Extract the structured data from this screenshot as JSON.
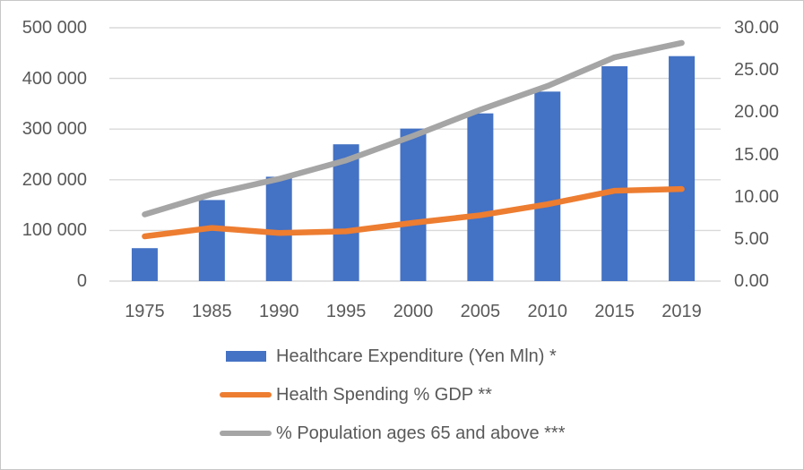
{
  "chart_data": {
    "type": "combo",
    "title": "",
    "categories": [
      "1975",
      "1985",
      "1990",
      "1995",
      "2000",
      "2005",
      "2010",
      "2015",
      "2019"
    ],
    "series": [
      {
        "name": "Healthcare Expenditure (Yen Mln) *",
        "chart_type": "bar",
        "axis": "left",
        "color": "#4472C4",
        "values": [
          65000,
          160000,
          206000,
          270000,
          301000,
          331000,
          374000,
          424000,
          444000
        ]
      },
      {
        "name": "Health Spending % GDP **",
        "chart_type": "line",
        "axis": "right",
        "color": "#ED7D31",
        "values": [
          5.3,
          6.3,
          5.7,
          5.9,
          6.9,
          7.8,
          9.1,
          10.7,
          10.9
        ]
      },
      {
        "name": "% Population ages 65 and above ***",
        "chart_type": "line",
        "axis": "right",
        "color": "#A5A5A5",
        "values": [
          7.9,
          10.3,
          12.1,
          14.3,
          17.2,
          20.3,
          23.1,
          26.5,
          28.2
        ]
      }
    ],
    "left_axis": {
      "min": 0,
      "max": 500000,
      "step": 100000,
      "tick_labels": [
        "0",
        "100 000",
        "200 000",
        "300 000",
        "400 000",
        "500 000"
      ]
    },
    "right_axis": {
      "min": 0,
      "max": 30,
      "step": 5,
      "tick_labels": [
        "0.00",
        "5.00",
        "10.00",
        "15.00",
        "20.00",
        "25.00",
        "30.00"
      ]
    },
    "grid": true,
    "legend_position": "bottom",
    "styles": {
      "text_color": "#595959",
      "gridline_color": "#D9D9D9",
      "background": "#FFFFFF",
      "border_color": "#C7C7C7"
    }
  }
}
